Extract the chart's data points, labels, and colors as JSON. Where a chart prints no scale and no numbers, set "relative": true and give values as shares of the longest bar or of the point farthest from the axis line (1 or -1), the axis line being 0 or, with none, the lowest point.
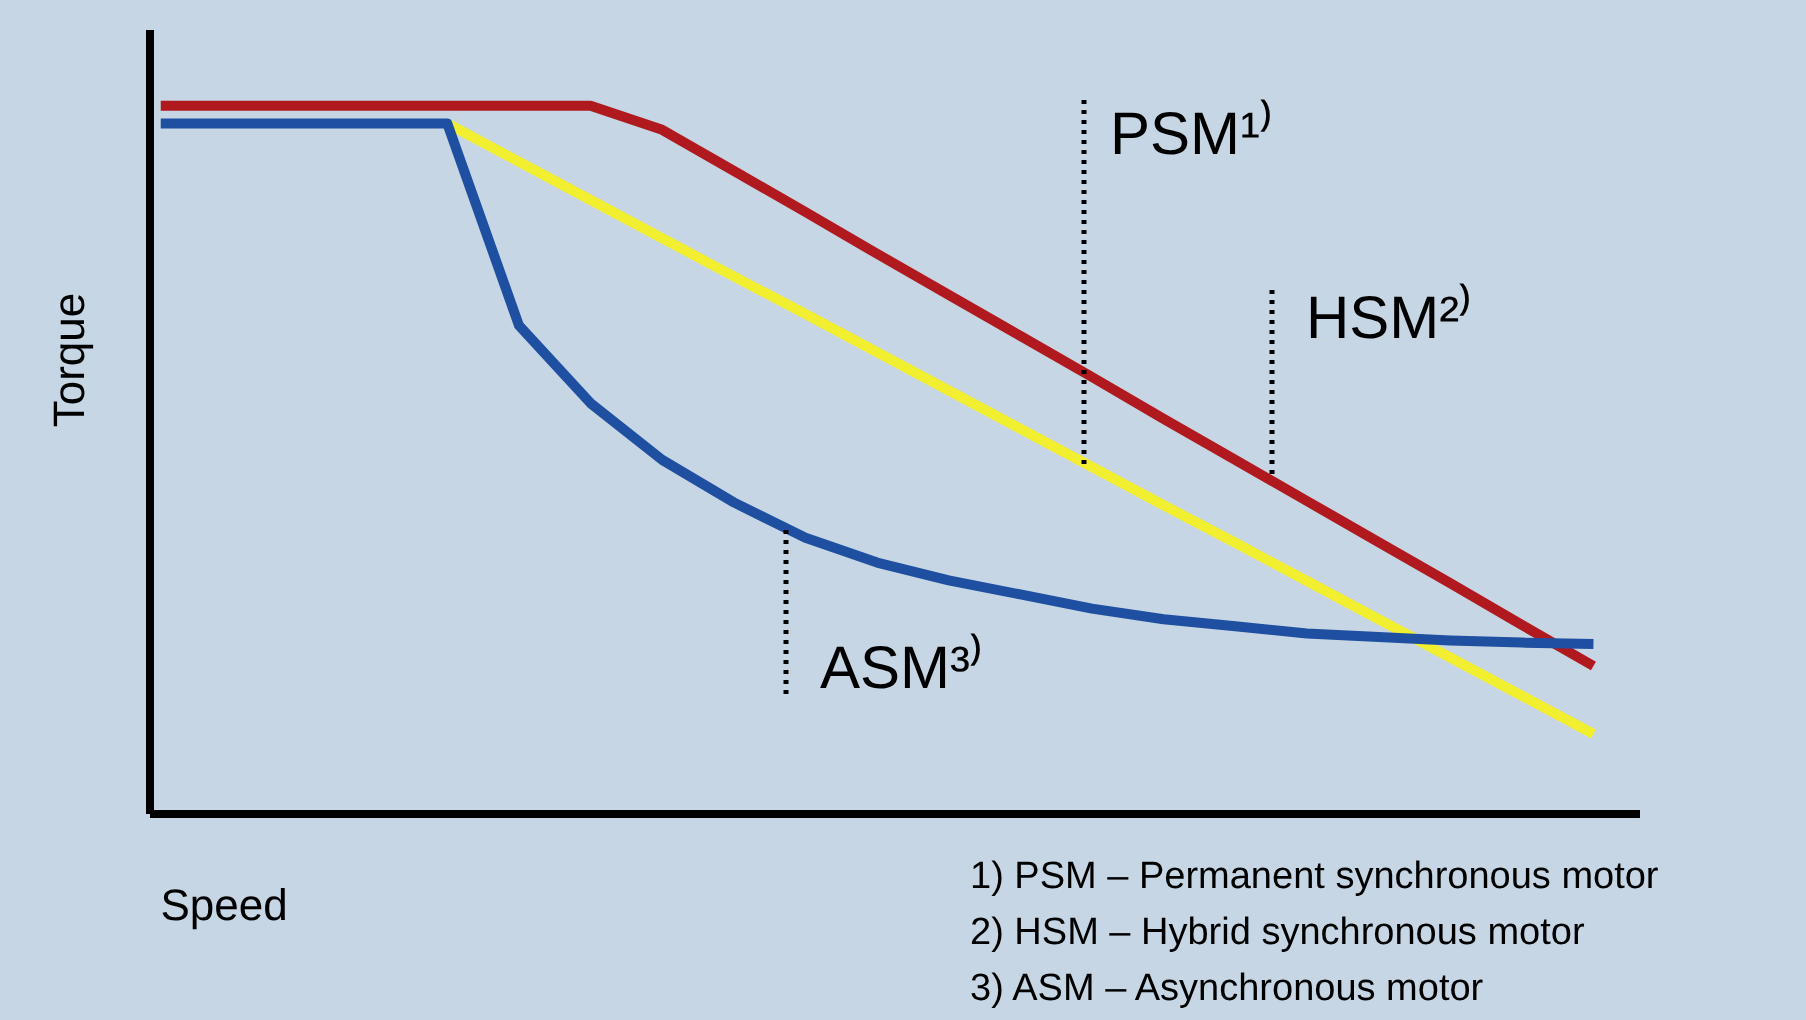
{
  "chart_data": {
    "type": "line",
    "relative": true,
    "xlabel": "Speed",
    "ylabel": "Torque",
    "grid": false,
    "tick_labels": false,
    "line_style": "solid",
    "marker": "none",
    "categories": [
      null,
      null,
      null,
      null,
      null,
      null,
      null,
      null,
      null,
      null,
      null,
      null,
      null,
      null,
      null,
      null,
      null,
      null,
      null,
      null,
      null
    ],
    "series": [
      {
        "name": "HSM²⁾",
        "color": "#b0191e",
        "values": [
          1,
          1,
          1,
          1,
          1,
          1,
          1,
          0.966,
          0.908,
          0.85,
          0.791,
          0.733,
          0.675,
          0.617,
          0.558,
          0.5,
          0.442,
          0.384,
          0.326,
          0.267,
          0.209
        ]
      },
      {
        "name": "PSM¹⁾",
        "color": "#f2ee30",
        "values": [
          null,
          null,
          null,
          null,
          0.975,
          0.921,
          0.867,
          0.813,
          0.759,
          0.706,
          0.652,
          0.598,
          0.544,
          0.49,
          0.436,
          0.383,
          0.329,
          0.275,
          0.221,
          0.167,
          0.113
        ]
      },
      {
        "name": "ASM³⁾",
        "color": "#1f4fa0",
        "values": [
          0.975,
          0.975,
          0.975,
          0.975,
          0.975,
          0.69,
          0.58,
          0.5,
          0.44,
          0.39,
          0.355,
          0.33,
          0.31,
          0.29,
          0.275,
          0.265,
          0.255,
          0.25,
          0.245,
          0.242,
          0.24
        ]
      }
    ],
    "annotations": [
      "1) PSM – Permanent synchronous motor",
      "2) HSM – Hybrid synchronous motor",
      "3) ASM – Asynchronous motor"
    ]
  }
}
